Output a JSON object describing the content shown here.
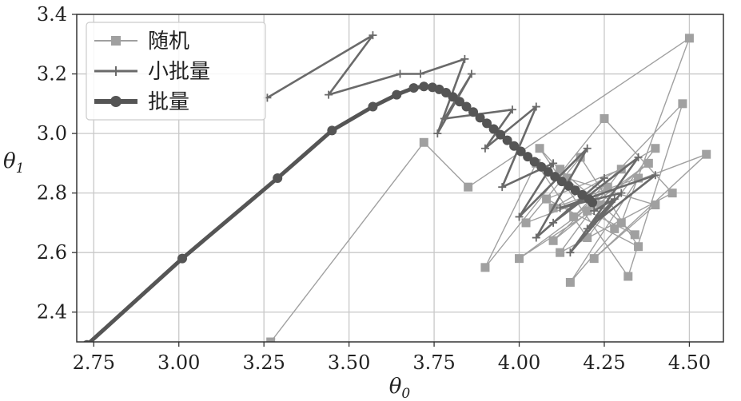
{
  "chart_data": {
    "type": "line",
    "xlabel": "θ",
    "xlabel_sub": "0",
    "ylabel": "θ",
    "ylabel_sub": "1",
    "xlim": [
      2.7,
      4.6
    ],
    "ylim": [
      2.3,
      3.4
    ],
    "xticks": [
      "2.75",
      "3.00",
      "3.25",
      "3.50",
      "3.75",
      "4.00",
      "4.25",
      "4.50"
    ],
    "yticks": [
      "2.4",
      "2.6",
      "2.8",
      "3.0",
      "3.2",
      "3.4"
    ],
    "grid": true,
    "legend_position": "top-left",
    "series": [
      {
        "name": "随机",
        "color": "#a0a0a0",
        "marker": "square",
        "values": [
          [
            3.27,
            2.3
          ],
          [
            3.72,
            2.97
          ],
          [
            3.85,
            2.82
          ],
          [
            4.5,
            3.32
          ],
          [
            4.3,
            2.7
          ],
          [
            4.15,
            2.5
          ],
          [
            4.35,
            2.85
          ],
          [
            4.1,
            2.75
          ],
          [
            4.4,
            2.95
          ],
          [
            4.2,
            2.65
          ],
          [
            4.05,
            2.9
          ],
          [
            3.9,
            2.55
          ],
          [
            4.25,
            3.05
          ],
          [
            4.45,
            2.8
          ],
          [
            4.12,
            2.6
          ],
          [
            4.3,
            2.88
          ],
          [
            4.08,
            2.78
          ],
          [
            4.35,
            2.62
          ],
          [
            4.18,
            2.92
          ],
          [
            4.02,
            2.7
          ],
          [
            4.55,
            2.93
          ],
          [
            4.22,
            2.58
          ],
          [
            4.4,
            2.76
          ],
          [
            4.14,
            2.85
          ],
          [
            4.28,
            2.68
          ],
          [
            4.06,
            2.95
          ],
          [
            4.32,
            2.52
          ],
          [
            4.48,
            3.1
          ],
          [
            4.16,
            2.72
          ],
          [
            4.26,
            2.82
          ],
          [
            4.1,
            2.64
          ],
          [
            4.38,
            2.9
          ],
          [
            4.0,
            2.58
          ],
          [
            4.24,
            2.76
          ],
          [
            4.12,
            2.88
          ],
          [
            4.34,
            2.66
          ],
          [
            4.2,
            2.74
          ]
        ]
      },
      {
        "name": "小批量",
        "color": "#6a6a6a",
        "marker": "plus",
        "values": [
          [
            3.26,
            3.12
          ],
          [
            3.57,
            3.33
          ],
          [
            3.44,
            3.13
          ],
          [
            3.65,
            3.2
          ],
          [
            3.71,
            3.2
          ],
          [
            3.84,
            3.25
          ],
          [
            3.76,
            3.0
          ],
          [
            3.86,
            3.2
          ],
          [
            3.78,
            3.05
          ],
          [
            3.98,
            3.08
          ],
          [
            3.9,
            2.95
          ],
          [
            4.05,
            3.09
          ],
          [
            3.95,
            2.82
          ],
          [
            4.1,
            2.9
          ],
          [
            4.0,
            2.72
          ],
          [
            4.2,
            2.95
          ],
          [
            4.05,
            2.65
          ],
          [
            4.25,
            2.85
          ],
          [
            4.1,
            2.7
          ],
          [
            4.35,
            2.92
          ],
          [
            4.15,
            2.6
          ],
          [
            4.3,
            2.8
          ],
          [
            4.12,
            2.75
          ],
          [
            4.4,
            2.86
          ],
          [
            4.2,
            2.68
          ],
          [
            4.28,
            2.78
          ],
          [
            4.22,
            2.74
          ]
        ]
      },
      {
        "name": "批量",
        "color": "#555555",
        "marker": "circle",
        "values": [
          [
            2.73,
            2.29
          ],
          [
            3.01,
            2.58
          ],
          [
            3.29,
            2.85
          ],
          [
            3.45,
            3.01
          ],
          [
            3.57,
            3.09
          ],
          [
            3.64,
            3.13
          ],
          [
            3.69,
            3.153
          ],
          [
            3.72,
            3.158
          ],
          [
            3.745,
            3.155
          ],
          [
            3.765,
            3.148
          ],
          [
            3.785,
            3.137
          ],
          [
            3.805,
            3.123
          ],
          [
            3.825,
            3.107
          ],
          [
            3.845,
            3.09
          ],
          [
            3.865,
            3.072
          ],
          [
            3.885,
            3.053
          ],
          [
            3.905,
            3.034
          ],
          [
            3.925,
            3.015
          ],
          [
            3.945,
            2.996
          ],
          [
            3.965,
            2.977
          ],
          [
            3.985,
            2.958
          ],
          [
            4.005,
            2.94
          ],
          [
            4.025,
            2.922
          ],
          [
            4.045,
            2.905
          ],
          [
            4.065,
            2.888
          ],
          [
            4.085,
            2.871
          ],
          [
            4.105,
            2.855
          ],
          [
            4.125,
            2.839
          ],
          [
            4.145,
            2.824
          ],
          [
            4.165,
            2.809
          ],
          [
            4.185,
            2.794
          ],
          [
            4.205,
            2.78
          ],
          [
            4.215,
            2.768
          ]
        ]
      }
    ]
  }
}
